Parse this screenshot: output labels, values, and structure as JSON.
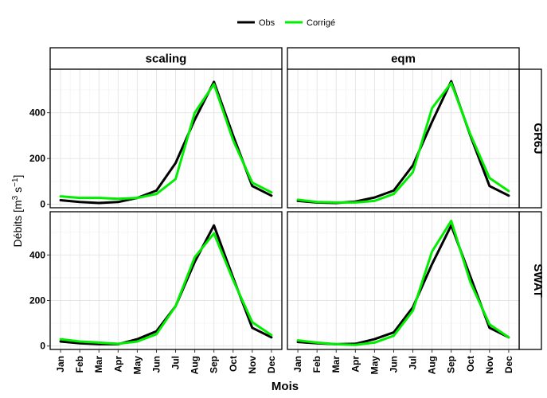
{
  "chart_data": {
    "type": "line",
    "xlabel": "Mois",
    "ylabel_prefix": "Débits [m",
    "ylabel_sup1": "3",
    "ylabel_mid": " s",
    "ylabel_sup2": "−1",
    "ylabel_suffix": "]",
    "ylim": [
      -15,
      590
    ],
    "yticks": [
      0,
      200,
      400
    ],
    "grid": true,
    "legend_position": "top",
    "categories": [
      "Jan",
      "Feb",
      "Mar",
      "Apr",
      "May",
      "Jun",
      "Jul",
      "Aug",
      "Sep",
      "Oct",
      "Nov",
      "Dec"
    ],
    "series_styles": [
      {
        "name": "Obs",
        "color": "#000000"
      },
      {
        "name": "Corrigé",
        "color": "#00ee00"
      }
    ],
    "columns": [
      "scaling",
      "eqm"
    ],
    "rows": [
      "GR6J",
      "SWAT"
    ],
    "panels": [
      {
        "column": "scaling",
        "row": "GR6J",
        "series": [
          {
            "name": "Obs",
            "values": [
              18,
              10,
              6,
              10,
              28,
              60,
              180,
              370,
              535,
              300,
              80,
              38
            ]
          },
          {
            "name": "Corrigé",
            "values": [
              35,
              28,
              28,
              24,
              28,
              45,
              110,
              400,
              525,
              280,
              95,
              52
            ]
          }
        ]
      },
      {
        "column": "eqm",
        "row": "GR6J",
        "series": [
          {
            "name": "Obs",
            "values": [
              15,
              8,
              6,
              12,
              30,
              60,
              170,
              360,
              538,
              300,
              80,
              38
            ]
          },
          {
            "name": "Corrigé",
            "values": [
              20,
              10,
              8,
              8,
              15,
              45,
              140,
              420,
              530,
              305,
              115,
              58
            ]
          }
        ]
      },
      {
        "column": "scaling",
        "row": "SWAT",
        "series": [
          {
            "name": "Obs",
            "values": [
              20,
              12,
              8,
              8,
              30,
              65,
              175,
              370,
              530,
              300,
              80,
              38
            ]
          },
          {
            "name": "Corrigé",
            "values": [
              30,
              20,
              15,
              10,
              20,
              52,
              175,
              390,
              495,
              290,
              105,
              48
            ]
          }
        ]
      },
      {
        "column": "eqm",
        "row": "SWAT",
        "series": [
          {
            "name": "Obs",
            "values": [
              18,
              12,
              8,
              10,
              30,
              60,
              170,
              360,
              530,
              305,
              80,
              38
            ]
          },
          {
            "name": "Corrigé",
            "values": [
              25,
              15,
              8,
              5,
              15,
              45,
              155,
              415,
              550,
              280,
              95,
              38
            ]
          }
        ]
      }
    ]
  }
}
